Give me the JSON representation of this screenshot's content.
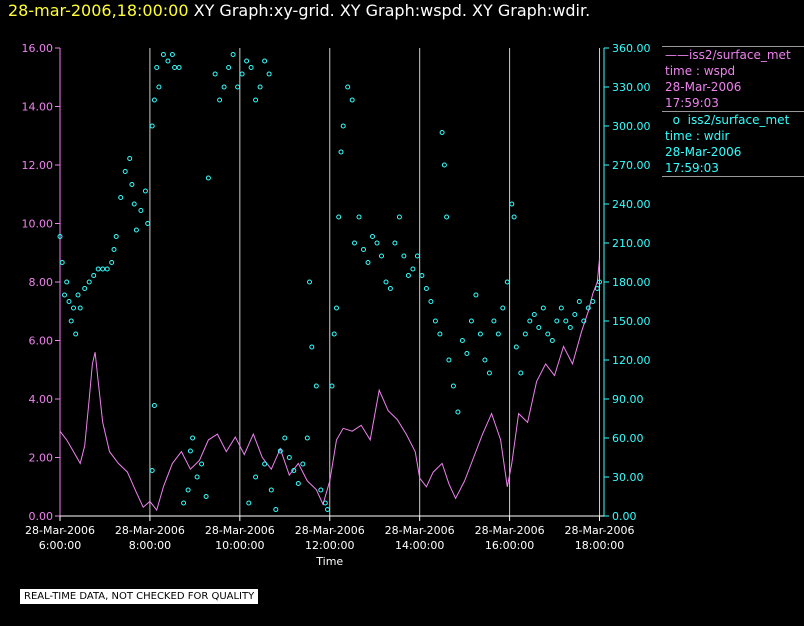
{
  "header": {
    "timestamp": "28-mar-2006,18:00:00",
    "rest": "  XY Graph:xy-grid.  XY Graph:wspd.  XY Graph:wdir."
  },
  "legend": [
    {
      "symbol": "——",
      "name": "iss2/surface_met",
      "line2": "time : wspd",
      "line3": "28-Mar-2006",
      "line4": "17:59:03",
      "color": "#ee82ee"
    },
    {
      "symbol": "o",
      "name": "iss2/surface_met",
      "line2": "time : wdir",
      "line3": "28-Mar-2006",
      "line4": "17:59:03",
      "color": "#33ffff"
    }
  ],
  "disclaimer": "REAL-TIME DATA, NOT CHECKED FOR QUALITY",
  "chart_data": {
    "type": "line",
    "xlabel": "Time",
    "x_range_hours": [
      6.0,
      18.1
    ],
    "x_ticks": [
      {
        "h": 6,
        "date": "28-Mar-2006",
        "time": "6:00:00"
      },
      {
        "h": 8,
        "date": "28-Mar-2006",
        "time": "8:00:00"
      },
      {
        "h": 10,
        "date": "28-Mar-2006",
        "time": "10:00:00"
      },
      {
        "h": 12,
        "date": "28-Mar-2006",
        "time": "12:00:00"
      },
      {
        "h": 14,
        "date": "28-Mar-2006",
        "time": "14:00:00"
      },
      {
        "h": 16,
        "date": "28-Mar-2006",
        "time": "16:00:00"
      },
      {
        "h": 18,
        "date": "28-Mar-2006",
        "time": "18:00:00"
      }
    ],
    "grid": "vertical lines at each time tick",
    "y_left": {
      "range": [
        0,
        16
      ],
      "ticks": [
        "0.00",
        "2.00",
        "4.00",
        "6.00",
        "8.00",
        "10.00",
        "12.00",
        "14.00",
        "16.00"
      ],
      "color": "#ee82ee"
    },
    "y_right": {
      "range": [
        0,
        360
      ],
      "ticks": [
        "0.00",
        "30.00",
        "60.00",
        "90.00",
        "120.00",
        "150.00",
        "180.00",
        "210.00",
        "240.00",
        "270.00",
        "300.00",
        "330.00",
        "360.00"
      ],
      "color": "#33ffff"
    },
    "series": [
      {
        "key": "wspd",
        "axis": "left",
        "style": "line",
        "color": "#ee82ee",
        "points": [
          [
            6.0,
            2.9
          ],
          [
            6.15,
            2.6
          ],
          [
            6.3,
            2.2
          ],
          [
            6.45,
            1.8
          ],
          [
            6.55,
            2.4
          ],
          [
            6.65,
            4.0
          ],
          [
            6.72,
            5.2
          ],
          [
            6.78,
            5.6
          ],
          [
            6.85,
            4.6
          ],
          [
            6.95,
            3.2
          ],
          [
            7.1,
            2.2
          ],
          [
            7.3,
            1.8
          ],
          [
            7.5,
            1.5
          ],
          [
            7.7,
            0.8
          ],
          [
            7.85,
            0.3
          ],
          [
            8.0,
            0.5
          ],
          [
            8.15,
            0.2
          ],
          [
            8.3,
            1.0
          ],
          [
            8.5,
            1.8
          ],
          [
            8.7,
            2.2
          ],
          [
            8.9,
            1.6
          ],
          [
            9.1,
            1.9
          ],
          [
            9.3,
            2.6
          ],
          [
            9.5,
            2.8
          ],
          [
            9.7,
            2.2
          ],
          [
            9.9,
            2.7
          ],
          [
            10.1,
            2.1
          ],
          [
            10.3,
            2.8
          ],
          [
            10.5,
            2.0
          ],
          [
            10.7,
            1.6
          ],
          [
            10.9,
            2.3
          ],
          [
            11.1,
            1.4
          ],
          [
            11.3,
            1.8
          ],
          [
            11.5,
            1.2
          ],
          [
            11.7,
            0.9
          ],
          [
            11.85,
            0.4
          ],
          [
            12.0,
            1.2
          ],
          [
            12.15,
            2.6
          ],
          [
            12.3,
            3.0
          ],
          [
            12.5,
            2.9
          ],
          [
            12.7,
            3.1
          ],
          [
            12.9,
            2.6
          ],
          [
            13.1,
            4.3
          ],
          [
            13.3,
            3.6
          ],
          [
            13.5,
            3.3
          ],
          [
            13.7,
            2.8
          ],
          [
            13.9,
            2.2
          ],
          [
            14.0,
            1.3
          ],
          [
            14.15,
            1.0
          ],
          [
            14.3,
            1.5
          ],
          [
            14.5,
            1.8
          ],
          [
            14.65,
            1.1
          ],
          [
            14.8,
            0.6
          ],
          [
            15.0,
            1.2
          ],
          [
            15.2,
            2.0
          ],
          [
            15.4,
            2.8
          ],
          [
            15.6,
            3.5
          ],
          [
            15.8,
            2.6
          ],
          [
            15.95,
            1.0
          ],
          [
            16.05,
            1.8
          ],
          [
            16.2,
            3.5
          ],
          [
            16.4,
            3.2
          ],
          [
            16.6,
            4.6
          ],
          [
            16.8,
            5.2
          ],
          [
            17.0,
            4.8
          ],
          [
            17.2,
            5.8
          ],
          [
            17.4,
            5.2
          ],
          [
            17.6,
            6.3
          ],
          [
            17.75,
            7.0
          ],
          [
            17.85,
            7.6
          ],
          [
            17.95,
            8.0
          ],
          [
            18.0,
            8.8
          ]
        ]
      },
      {
        "key": "wdir",
        "axis": "right",
        "style": "points",
        "color": "#33ffff",
        "points": [
          [
            6.0,
            215
          ],
          [
            6.05,
            195
          ],
          [
            6.1,
            170
          ],
          [
            6.15,
            180
          ],
          [
            6.2,
            165
          ],
          [
            6.25,
            150
          ],
          [
            6.3,
            160
          ],
          [
            6.35,
            140
          ],
          [
            6.4,
            170
          ],
          [
            6.45,
            160
          ],
          [
            6.55,
            175
          ],
          [
            6.65,
            180
          ],
          [
            6.75,
            185
          ],
          [
            6.85,
            190
          ],
          [
            6.95,
            190
          ],
          [
            7.05,
            190
          ],
          [
            7.15,
            195
          ],
          [
            7.2,
            205
          ],
          [
            7.25,
            215
          ],
          [
            7.35,
            245
          ],
          [
            7.45,
            265
          ],
          [
            7.55,
            275
          ],
          [
            7.6,
            255
          ],
          [
            7.65,
            240
          ],
          [
            7.7,
            220
          ],
          [
            7.8,
            235
          ],
          [
            7.9,
            250
          ],
          [
            7.95,
            225
          ],
          [
            8.05,
            35
          ],
          [
            8.1,
            85
          ],
          [
            8.05,
            300
          ],
          [
            8.1,
            320
          ],
          [
            8.15,
            345
          ],
          [
            8.2,
            330
          ],
          [
            8.3,
            355
          ],
          [
            8.4,
            350
          ],
          [
            8.5,
            355
          ],
          [
            8.55,
            345
          ],
          [
            8.65,
            345
          ],
          [
            8.75,
            10
          ],
          [
            8.85,
            20
          ],
          [
            8.9,
            50
          ],
          [
            8.95,
            60
          ],
          [
            9.05,
            30
          ],
          [
            9.15,
            40
          ],
          [
            9.25,
            15
          ],
          [
            9.3,
            260
          ],
          [
            9.45,
            340
          ],
          [
            9.55,
            320
          ],
          [
            9.65,
            330
          ],
          [
            9.75,
            345
          ],
          [
            9.85,
            355
          ],
          [
            9.95,
            330
          ],
          [
            10.05,
            340
          ],
          [
            10.15,
            350
          ],
          [
            10.25,
            345
          ],
          [
            10.35,
            320
          ],
          [
            10.45,
            330
          ],
          [
            10.55,
            350
          ],
          [
            10.65,
            340
          ],
          [
            10.2,
            10
          ],
          [
            10.35,
            30
          ],
          [
            10.55,
            40
          ],
          [
            10.7,
            20
          ],
          [
            10.8,
            5
          ],
          [
            10.9,
            50
          ],
          [
            11.0,
            60
          ],
          [
            11.1,
            45
          ],
          [
            11.2,
            35
          ],
          [
            11.3,
            25
          ],
          [
            11.4,
            40
          ],
          [
            11.5,
            60
          ],
          [
            11.55,
            180
          ],
          [
            11.6,
            130
          ],
          [
            11.7,
            100
          ],
          [
            11.8,
            20
          ],
          [
            11.9,
            10
          ],
          [
            11.95,
            5
          ],
          [
            12.05,
            100
          ],
          [
            12.1,
            140
          ],
          [
            12.15,
            160
          ],
          [
            12.2,
            230
          ],
          [
            12.25,
            280
          ],
          [
            12.3,
            300
          ],
          [
            12.4,
            330
          ],
          [
            12.5,
            320
          ],
          [
            12.55,
            210
          ],
          [
            12.65,
            230
          ],
          [
            12.75,
            205
          ],
          [
            12.85,
            195
          ],
          [
            12.95,
            215
          ],
          [
            13.05,
            210
          ],
          [
            13.15,
            200
          ],
          [
            13.25,
            180
          ],
          [
            13.35,
            175
          ],
          [
            13.45,
            210
          ],
          [
            13.55,
            230
          ],
          [
            13.65,
            200
          ],
          [
            13.75,
            185
          ],
          [
            13.85,
            190
          ],
          [
            13.95,
            200
          ],
          [
            14.05,
            185
          ],
          [
            14.15,
            175
          ],
          [
            14.25,
            165
          ],
          [
            14.35,
            150
          ],
          [
            14.45,
            140
          ],
          [
            14.5,
            295
          ],
          [
            14.55,
            270
          ],
          [
            14.6,
            230
          ],
          [
            14.65,
            120
          ],
          [
            14.75,
            100
          ],
          [
            14.85,
            80
          ],
          [
            14.95,
            135
          ],
          [
            15.05,
            125
          ],
          [
            15.15,
            150
          ],
          [
            15.25,
            170
          ],
          [
            15.35,
            140
          ],
          [
            15.45,
            120
          ],
          [
            15.55,
            110
          ],
          [
            15.65,
            150
          ],
          [
            15.75,
            140
          ],
          [
            15.85,
            160
          ],
          [
            15.95,
            180
          ],
          [
            16.05,
            240
          ],
          [
            16.1,
            230
          ],
          [
            16.15,
            130
          ],
          [
            16.25,
            110
          ],
          [
            16.35,
            140
          ],
          [
            16.45,
            150
          ],
          [
            16.55,
            155
          ],
          [
            16.65,
            145
          ],
          [
            16.75,
            160
          ],
          [
            16.85,
            140
          ],
          [
            16.95,
            135
          ],
          [
            17.05,
            150
          ],
          [
            17.15,
            160
          ],
          [
            17.25,
            150
          ],
          [
            17.35,
            145
          ],
          [
            17.45,
            155
          ],
          [
            17.55,
            165
          ],
          [
            17.65,
            150
          ],
          [
            17.75,
            160
          ],
          [
            17.85,
            165
          ],
          [
            17.95,
            175
          ],
          [
            18.0,
            180
          ]
        ]
      }
    ]
  }
}
